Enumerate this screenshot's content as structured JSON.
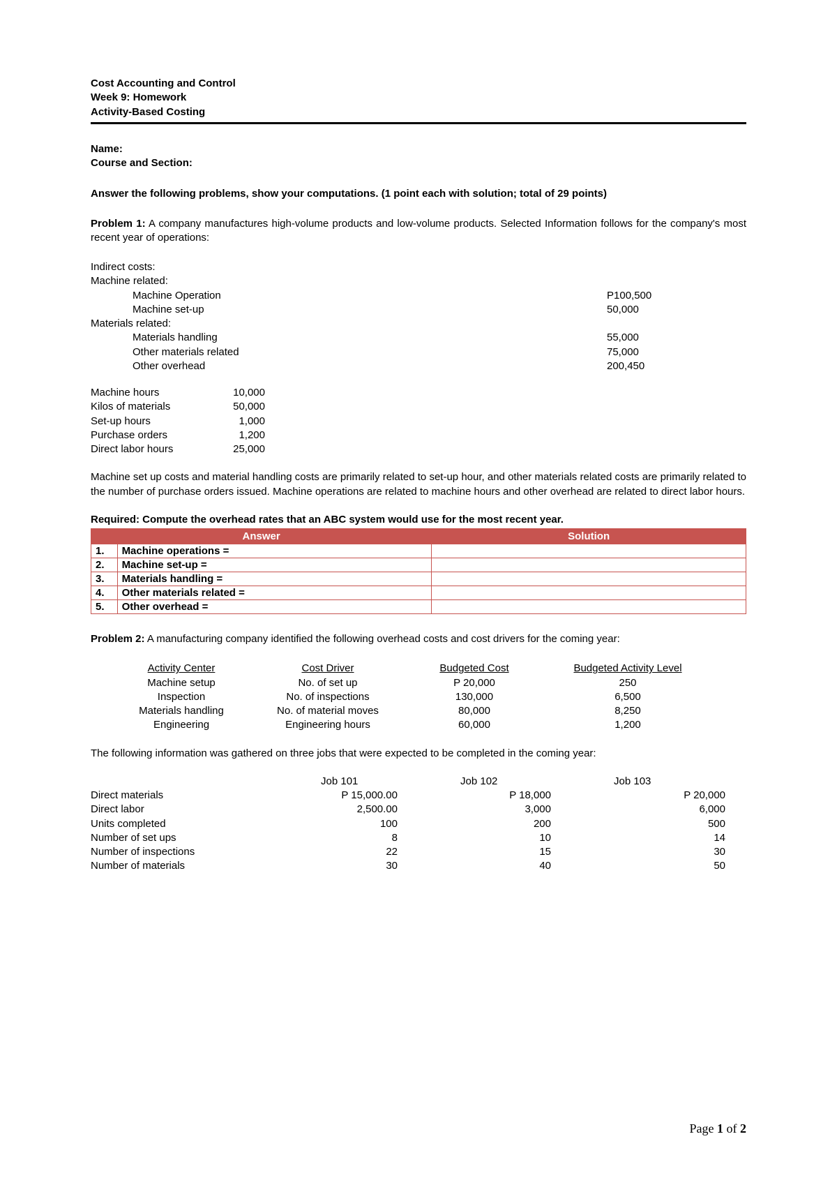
{
  "header": {
    "line1": "Cost Accounting and Control",
    "line2": "Week 9: Homework",
    "line3": "Activity-Based Costing"
  },
  "identity": {
    "name_label": "Name:",
    "course_label": "Course and Section:"
  },
  "instructions": "Answer the following problems, show your computations. (1 point each with solution; total of 29 points)",
  "problem1": {
    "label": "Problem 1:",
    "intro": " A company manufactures high-volume products and low-volume products. Selected Information follows for the company's most recent year of operations:",
    "indirect_title": "Indirect costs:",
    "machine_related_title": "Machine related:",
    "materials_related_title": "Materials related:",
    "costs": {
      "machine_operation": {
        "label": "Machine Operation",
        "value": "P100,500"
      },
      "machine_setup": {
        "label": "Machine set-up",
        "value": "50,000"
      },
      "materials_handling": {
        "label": "Materials handling",
        "value": "55,000"
      },
      "other_materials": {
        "label": "Other materials related",
        "value": "75,000"
      },
      "other_overhead": {
        "label": "Other overhead",
        "value": "200,450"
      }
    },
    "drivers": {
      "machine_hours": {
        "label": "Machine hours",
        "value": "10,000"
      },
      "kilos_materials": {
        "label": "Kilos of materials",
        "value": "50,000"
      },
      "setup_hours": {
        "label": "Set-up hours",
        "value": "1,000"
      },
      "purchase_orders": {
        "label": "Purchase orders",
        "value": "1,200"
      },
      "direct_labor": {
        "label": "Direct labor hours",
        "value": "25,000"
      }
    },
    "explain": "Machine set up costs and material handling costs are primarily related to set-up hour, and other materials related costs are primarily related to the number of purchase orders issued. Machine operations are related to machine hours and other overhead are related to direct labor hours.",
    "required": "Required: Compute the overhead rates that an ABC system would use for the most recent year.",
    "table": {
      "header_answer": "Answer",
      "header_solution": "Solution",
      "rows": [
        {
          "num": "1.",
          "label": "Machine operations ="
        },
        {
          "num": "2.",
          "label": "Machine set-up ="
        },
        {
          "num": "3.",
          "label": "Materials handling ="
        },
        {
          "num": "4.",
          "label": "Other materials related ="
        },
        {
          "num": "5.",
          "label": "Other overhead ="
        }
      ]
    }
  },
  "problem2": {
    "label": "Problem 2:",
    "intro": " A manufacturing company identified the following overhead costs and cost drivers for the coming year:",
    "headers": {
      "activity_center": "Activity Center",
      "cost_driver": "Cost Driver",
      "budgeted_cost": "Budgeted Cost",
      "budgeted_activity": "Budgeted Activity Level"
    },
    "rows": [
      {
        "center": "Machine setup",
        "driver": "No. of set up",
        "cost": "P 20,000",
        "level": "250"
      },
      {
        "center": "Inspection",
        "driver": "No. of inspections",
        "cost": "130,000",
        "level": "6,500"
      },
      {
        "center": "Materials handling",
        "driver": "No. of material moves",
        "cost": "80,000",
        "level": "8,250"
      },
      {
        "center": "Engineering",
        "driver": "Engineering hours",
        "cost": "60,000",
        "level": "1,200"
      }
    ],
    "jobs_intro": "The following information was gathered on three jobs that were expected to be completed in the coming year:",
    "jobs_headers": {
      "j1": "Job 101",
      "j2": "Job 102",
      "j3": "Job 103"
    },
    "jobs_rows": [
      {
        "label": "Direct materials",
        "j1": "P 15,000.00",
        "j2": "P  18,000",
        "j3": "P  20,000"
      },
      {
        "label": "Direct labor",
        "j1": "2,500.00",
        "j2": "3,000",
        "j3": "6,000"
      },
      {
        "label": "Units completed",
        "j1": "100",
        "j2": "200",
        "j3": "500"
      },
      {
        "label": "Number of set ups",
        "j1": "8",
        "j2": "10",
        "j3": "14"
      },
      {
        "label": "Number of inspections",
        "j1": "22",
        "j2": "15",
        "j3": "30"
      },
      {
        "label": "Number of materials",
        "j1": "30",
        "j2": "40",
        "j3": "50"
      }
    ]
  },
  "footer": {
    "prefix": "Page ",
    "current": "1",
    "of": " of ",
    "total": "2"
  },
  "colors": {
    "table_border": "#c75450",
    "table_header_bg": "#c75450",
    "table_header_fg": "#ffffff",
    "text": "#000000",
    "background": "#ffffff"
  }
}
